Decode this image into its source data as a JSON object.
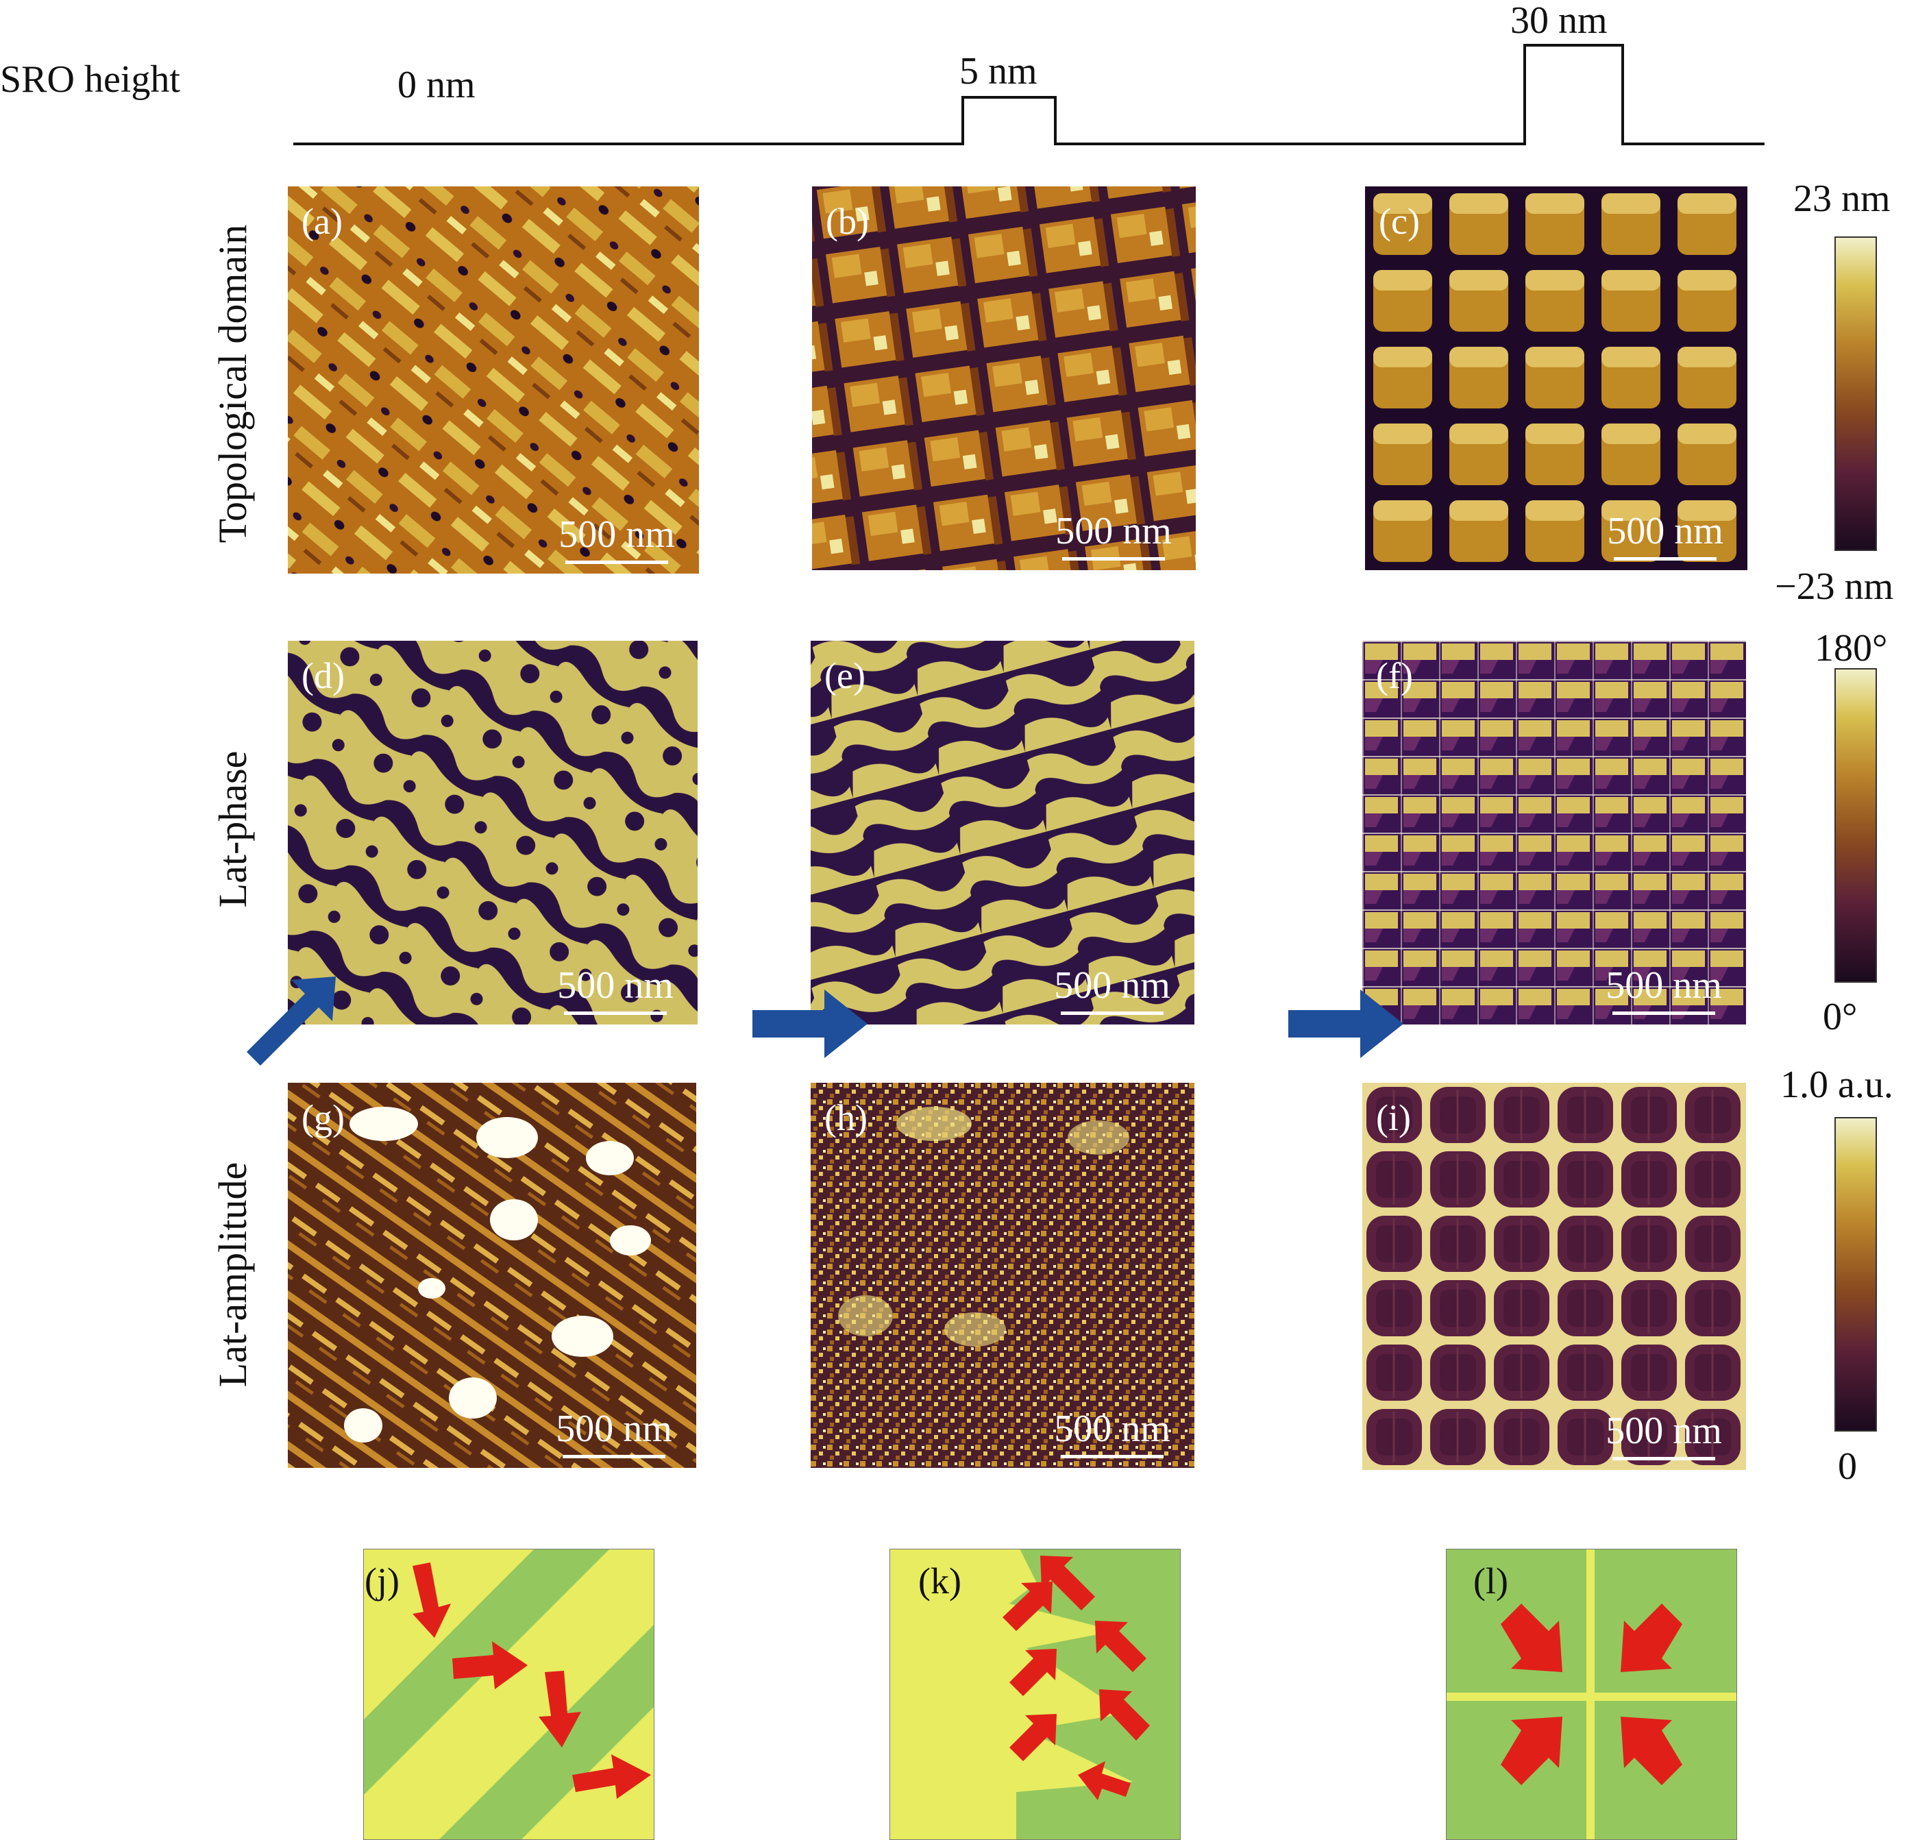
{
  "header": {
    "sro_label": "SRO height",
    "steps": [
      "0 nm",
      "5 nm",
      "30 nm"
    ]
  },
  "rows": [
    {
      "label": "Topological domain"
    },
    {
      "label": "Lat-phase"
    },
    {
      "label": "Lat-amplitude"
    }
  ],
  "panels": {
    "a": "(a)",
    "b": "(b)",
    "c": "(c)",
    "d": "(d)",
    "e": "(e)",
    "f": "(f)",
    "g": "(g)",
    "h": "(h)",
    "i": "(i)",
    "j": "(j)",
    "k": "(k)",
    "l": "(l)"
  },
  "scale_bar": "500 nm",
  "colorbars": [
    {
      "max": "23 nm",
      "min": "−23 nm"
    },
    {
      "max": "180°",
      "min": "0°"
    },
    {
      "max": "1.0 a.u.",
      "min": "0"
    }
  ],
  "colors": {
    "afm_dark": "#1e0a28",
    "afm_mid": "#8a4a12",
    "afm_gold": "#c88a1e",
    "afm_light": "#e8e070",
    "phase_gold": "#cfc060",
    "phase_dark": "#3a1a50",
    "arrow_blue": "#1f4e9a",
    "schematic_green": "#94c85e",
    "schematic_yellow": "#e8ec60",
    "schematic_arrow": "#e02018"
  }
}
